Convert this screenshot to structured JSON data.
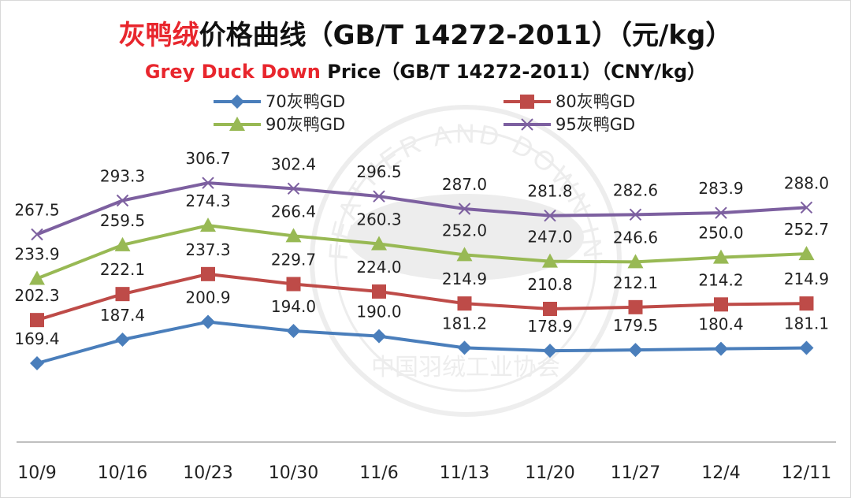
{
  "title": {
    "zh_accent": "灰鸭绒",
    "zh_rest": "价格曲线（GB/T 14272-2011）（元/kg）",
    "en_accent": "Grey Duck Down",
    "en_rest": " Price（GB/T 14272-2011）（CNY/kg）"
  },
  "colors": {
    "title_accent": "#e8262d",
    "title_text": "#111111",
    "axis": "#bfbfbf"
  },
  "chart_data": {
    "type": "line",
    "categories": [
      "10/9",
      "10/16",
      "10/23",
      "10/30",
      "11/6",
      "11/13",
      "11/20",
      "11/27",
      "12/4",
      "12/11"
    ],
    "ylim": [
      100,
      330
    ],
    "grid": false,
    "legend_position": "top",
    "series": [
      {
        "name": "70灰鸭GD",
        "color": "#4a7ebb",
        "marker": "diamond",
        "values": [
          169.4,
          187.4,
          200.9,
          194.0,
          190.0,
          181.2,
          178.9,
          179.5,
          180.4,
          181.1
        ],
        "labels": [
          "169.4",
          "187.4",
          "200.9",
          "194.0",
          "190.0",
          "181.2",
          "178.9",
          "179.5",
          "180.4",
          "181.1"
        ]
      },
      {
        "name": "80灰鸭GD",
        "color": "#be4b48",
        "marker": "square",
        "values": [
          202.3,
          222.1,
          237.3,
          229.7,
          224.0,
          214.9,
          210.8,
          212.1,
          214.2,
          214.9
        ],
        "labels": [
          "202.3",
          "222.1",
          "237.3",
          "229.7",
          "224.0",
          "214.9",
          "210.8",
          "212.1",
          "214.2",
          "214.9"
        ]
      },
      {
        "name": "90灰鸭GD",
        "color": "#98b954",
        "marker": "triangle",
        "values": [
          233.9,
          259.5,
          274.3,
          266.4,
          260.3,
          252.0,
          247.0,
          246.6,
          250.0,
          252.7
        ],
        "labels": [
          "233.9",
          "259.5",
          "274.3",
          "266.4",
          "260.3",
          "252.0",
          "247.0",
          "246.6",
          "250.0",
          "252.7"
        ]
      },
      {
        "name": "95灰鸭GD",
        "color": "#7d60a0",
        "marker": "x",
        "values": [
          267.5,
          293.3,
          306.7,
          302.4,
          296.5,
          287.0,
          281.8,
          282.6,
          283.9,
          288.0
        ],
        "labels": [
          "267.5",
          "293.3",
          "306.7",
          "302.4",
          "296.5",
          "287.0",
          "281.8",
          "282.6",
          "283.9",
          "288.0"
        ]
      }
    ]
  },
  "watermark": {
    "arc_text": "FEATHER AND DOWN INDUSTRIAL",
    "bottom_text": "中国羽绒工业协会"
  }
}
